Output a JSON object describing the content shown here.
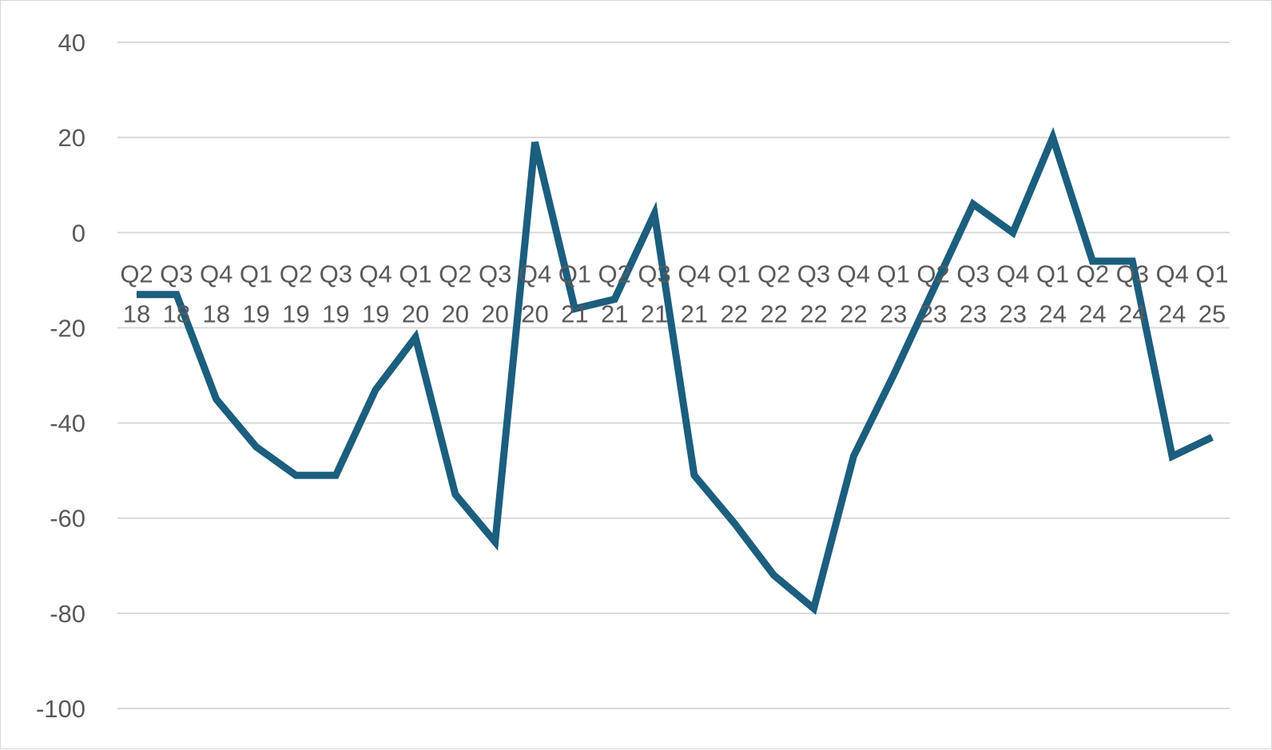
{
  "chart_data": {
    "type": "line",
    "title": "",
    "xlabel": "",
    "ylabel": "",
    "ylim": [
      -100,
      40
    ],
    "y_ticks": [
      40,
      20,
      0,
      -20,
      -40,
      -60,
      -80,
      -100
    ],
    "grid": true,
    "legend": "none",
    "categories": [
      [
        "Q2",
        "18"
      ],
      [
        "Q3",
        "18"
      ],
      [
        "Q4",
        "18"
      ],
      [
        "Q1",
        "19"
      ],
      [
        "Q2",
        "19"
      ],
      [
        "Q3",
        "19"
      ],
      [
        "Q4",
        "19"
      ],
      [
        "Q1",
        "20"
      ],
      [
        "Q2",
        "20"
      ],
      [
        "Q3",
        "20"
      ],
      [
        "Q4",
        "20"
      ],
      [
        "Q1",
        "21"
      ],
      [
        "Q2",
        "21"
      ],
      [
        "Q3",
        "21"
      ],
      [
        "Q4",
        "21"
      ],
      [
        "Q1",
        "22"
      ],
      [
        "Q2",
        "22"
      ],
      [
        "Q3",
        "22"
      ],
      [
        "Q4",
        "22"
      ],
      [
        "Q1",
        "23"
      ],
      [
        "Q2",
        "23"
      ],
      [
        "Q3",
        "23"
      ],
      [
        "Q4",
        "23"
      ],
      [
        "Q1",
        "24"
      ],
      [
        "Q2",
        "24"
      ],
      [
        "Q3",
        "24"
      ],
      [
        "Q4",
        "24"
      ],
      [
        "Q1",
        "25"
      ]
    ],
    "series": [
      {
        "color": "#1b5e7e",
        "values": [
          -13,
          -13,
          -35,
          -45,
          -51,
          -51,
          -33,
          -22,
          -55,
          -65,
          19,
          -16,
          -14,
          4,
          -51,
          -61,
          -72,
          -79,
          -47,
          -30,
          -12,
          6,
          0,
          20,
          -6,
          -6,
          -47,
          -43
        ]
      }
    ]
  }
}
